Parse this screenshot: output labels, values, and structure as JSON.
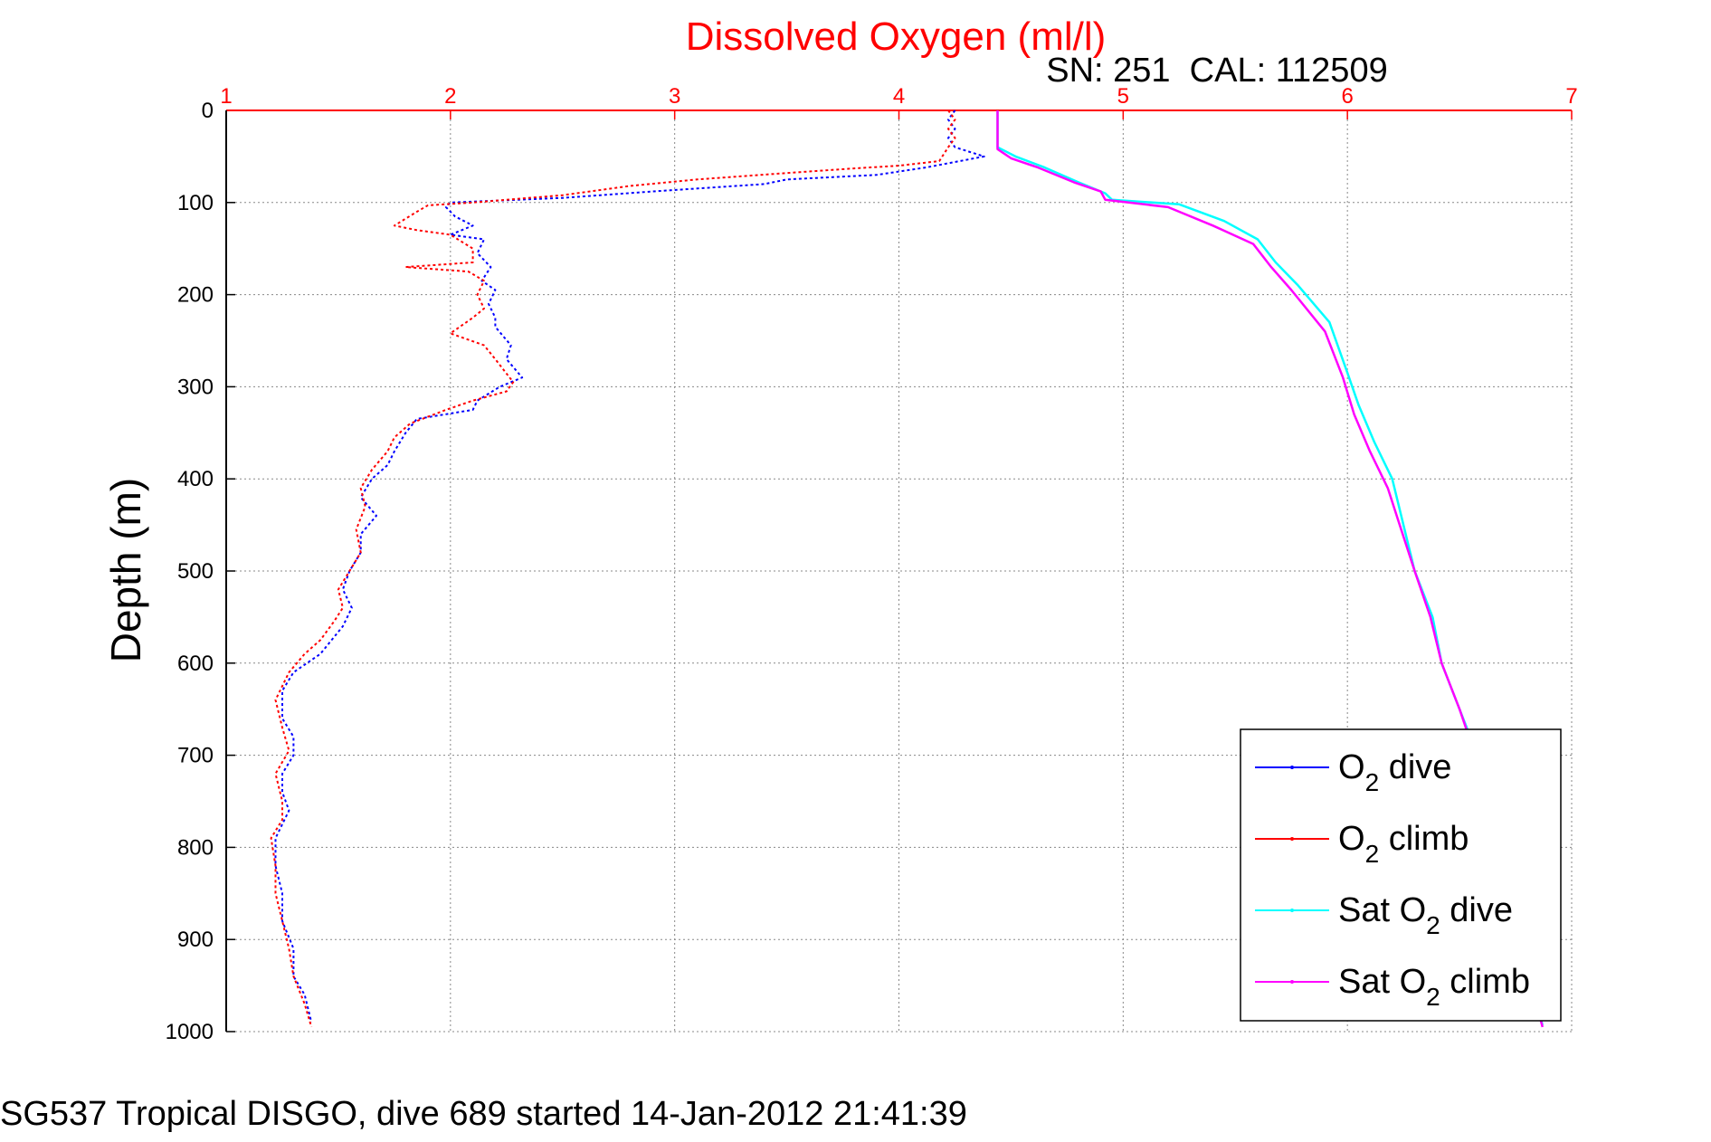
{
  "chart_data": {
    "type": "line",
    "title": "Dissolved Oxygen (ml/l)",
    "subtitle": "SN: 251  CAL: 112509",
    "ylabel": "Depth (m)",
    "footer": "SG537 Tropical DISGO, dive 689 started 14-Jan-2012 21:41:39",
    "xlim": [
      1,
      7
    ],
    "ylim": [
      0,
      1000
    ],
    "y_reversed": true,
    "x_axis_position": "top",
    "xticks": [
      1,
      2,
      3,
      4,
      5,
      6,
      7
    ],
    "yticks": [
      0,
      100,
      200,
      300,
      400,
      500,
      600,
      700,
      800,
      900,
      1000
    ],
    "grid": true,
    "legend_position": "bottom-right",
    "colors": {
      "title": "#ff0000",
      "x_axis": "#ff0000",
      "y_axis": "#000000",
      "grid": "#888888"
    },
    "series": [
      {
        "name_parts": [
          "O",
          "2",
          " dive"
        ],
        "color": "#0000ff",
        "points": [
          [
            4.25,
            0
          ],
          [
            4.22,
            10
          ],
          [
            4.25,
            20
          ],
          [
            4.22,
            30
          ],
          [
            4.25,
            40
          ],
          [
            4.38,
            50
          ],
          [
            4.12,
            62
          ],
          [
            3.9,
            70
          ],
          [
            3.5,
            75
          ],
          [
            3.4,
            80
          ],
          [
            2.9,
            88
          ],
          [
            2.5,
            95
          ],
          [
            2.0,
            100
          ],
          [
            1.98,
            105
          ],
          [
            2.02,
            115
          ],
          [
            2.1,
            125
          ],
          [
            2.0,
            135
          ],
          [
            2.15,
            140
          ],
          [
            2.12,
            155
          ],
          [
            2.18,
            170
          ],
          [
            2.14,
            185
          ],
          [
            2.2,
            195
          ],
          [
            2.17,
            210
          ],
          [
            2.2,
            225
          ],
          [
            2.2,
            235
          ],
          [
            2.27,
            255
          ],
          [
            2.25,
            270
          ],
          [
            2.32,
            290
          ],
          [
            2.22,
            300
          ],
          [
            2.12,
            315
          ],
          [
            2.1,
            325
          ],
          [
            1.85,
            335
          ],
          [
            1.8,
            350
          ],
          [
            1.75,
            370
          ],
          [
            1.72,
            385
          ],
          [
            1.65,
            400
          ],
          [
            1.6,
            420
          ],
          [
            1.67,
            440
          ],
          [
            1.6,
            460
          ],
          [
            1.6,
            480
          ],
          [
            1.55,
            500
          ],
          [
            1.52,
            520
          ],
          [
            1.56,
            540
          ],
          [
            1.52,
            560
          ],
          [
            1.47,
            575
          ],
          [
            1.42,
            590
          ],
          [
            1.3,
            610
          ],
          [
            1.25,
            630
          ],
          [
            1.25,
            660
          ],
          [
            1.3,
            680
          ],
          [
            1.3,
            700
          ],
          [
            1.25,
            720
          ],
          [
            1.25,
            740
          ],
          [
            1.28,
            760
          ],
          [
            1.22,
            790
          ],
          [
            1.22,
            820
          ],
          [
            1.25,
            850
          ],
          [
            1.25,
            880
          ],
          [
            1.3,
            910
          ],
          [
            1.3,
            940
          ],
          [
            1.35,
            960
          ],
          [
            1.38,
            990
          ]
        ]
      },
      {
        "name_parts": [
          "O",
          "2",
          " climb"
        ],
        "color": "#ff0000",
        "points": [
          [
            4.22,
            0
          ],
          [
            4.25,
            10
          ],
          [
            4.22,
            20
          ],
          [
            4.25,
            30
          ],
          [
            4.22,
            40
          ],
          [
            4.18,
            55
          ],
          [
            4.0,
            60
          ],
          [
            3.8,
            63
          ],
          [
            3.5,
            68
          ],
          [
            3.1,
            75
          ],
          [
            2.8,
            82
          ],
          [
            2.5,
            92
          ],
          [
            2.1,
            100
          ],
          [
            1.9,
            103
          ],
          [
            1.85,
            110
          ],
          [
            1.75,
            125
          ],
          [
            1.85,
            130
          ],
          [
            2.0,
            135
          ],
          [
            2.1,
            150
          ],
          [
            2.1,
            165
          ],
          [
            1.8,
            170
          ],
          [
            2.08,
            175
          ],
          [
            2.15,
            185
          ],
          [
            2.12,
            200
          ],
          [
            2.15,
            215
          ],
          [
            2.1,
            225
          ],
          [
            2.0,
            242
          ],
          [
            2.15,
            255
          ],
          [
            2.2,
            270
          ],
          [
            2.28,
            295
          ],
          [
            2.25,
            305
          ],
          [
            2.1,
            315
          ],
          [
            1.98,
            325
          ],
          [
            1.82,
            340
          ],
          [
            1.75,
            355
          ],
          [
            1.72,
            370
          ],
          [
            1.65,
            390
          ],
          [
            1.6,
            410
          ],
          [
            1.62,
            430
          ],
          [
            1.58,
            455
          ],
          [
            1.6,
            480
          ],
          [
            1.55,
            500
          ],
          [
            1.5,
            520
          ],
          [
            1.52,
            540
          ],
          [
            1.48,
            555
          ],
          [
            1.42,
            575
          ],
          [
            1.35,
            590
          ],
          [
            1.28,
            610
          ],
          [
            1.22,
            640
          ],
          [
            1.25,
            670
          ],
          [
            1.28,
            695
          ],
          [
            1.22,
            720
          ],
          [
            1.25,
            750
          ],
          [
            1.25,
            770
          ],
          [
            1.2,
            790
          ],
          [
            1.22,
            820
          ],
          [
            1.22,
            850
          ],
          [
            1.25,
            880
          ],
          [
            1.28,
            910
          ],
          [
            1.3,
            940
          ],
          [
            1.35,
            970
          ],
          [
            1.38,
            995
          ]
        ]
      },
      {
        "name_parts": [
          "Sat O",
          "2",
          " dive"
        ],
        "color": "#00ffff",
        "points": [
          [
            4.44,
            0
          ],
          [
            4.44,
            40
          ],
          [
            4.52,
            50
          ],
          [
            4.65,
            62
          ],
          [
            4.8,
            78
          ],
          [
            4.92,
            90
          ],
          [
            4.95,
            97
          ],
          [
            5.25,
            102
          ],
          [
            5.45,
            120
          ],
          [
            5.6,
            140
          ],
          [
            5.68,
            165
          ],
          [
            5.78,
            190
          ],
          [
            5.92,
            230
          ],
          [
            6.0,
            285
          ],
          [
            6.05,
            320
          ],
          [
            6.12,
            360
          ],
          [
            6.2,
            400
          ],
          [
            6.25,
            450
          ],
          [
            6.3,
            500
          ],
          [
            6.38,
            550
          ],
          [
            6.42,
            600
          ],
          [
            6.5,
            650
          ],
          [
            6.58,
            700
          ],
          [
            6.62,
            750
          ],
          [
            6.68,
            800
          ],
          [
            6.75,
            850
          ],
          [
            6.8,
            900
          ],
          [
            6.82,
            950
          ],
          [
            6.87,
            993
          ]
        ]
      },
      {
        "name_parts": [
          "Sat O",
          "2",
          " climb"
        ],
        "color": "#ff00ff",
        "points": [
          [
            4.44,
            0
          ],
          [
            4.44,
            42
          ],
          [
            4.5,
            52
          ],
          [
            4.62,
            62
          ],
          [
            4.78,
            78
          ],
          [
            4.9,
            88
          ],
          [
            4.92,
            97
          ],
          [
            5.2,
            105
          ],
          [
            5.4,
            125
          ],
          [
            5.58,
            145
          ],
          [
            5.66,
            170
          ],
          [
            5.75,
            195
          ],
          [
            5.9,
            240
          ],
          [
            5.98,
            290
          ],
          [
            6.03,
            330
          ],
          [
            6.1,
            370
          ],
          [
            6.18,
            410
          ],
          [
            6.24,
            455
          ],
          [
            6.3,
            500
          ],
          [
            6.37,
            550
          ],
          [
            6.42,
            600
          ],
          [
            6.5,
            650
          ],
          [
            6.57,
            700
          ],
          [
            6.62,
            750
          ],
          [
            6.68,
            800
          ],
          [
            6.74,
            850
          ],
          [
            6.8,
            900
          ],
          [
            6.82,
            950
          ],
          [
            6.87,
            995
          ]
        ]
      }
    ]
  }
}
